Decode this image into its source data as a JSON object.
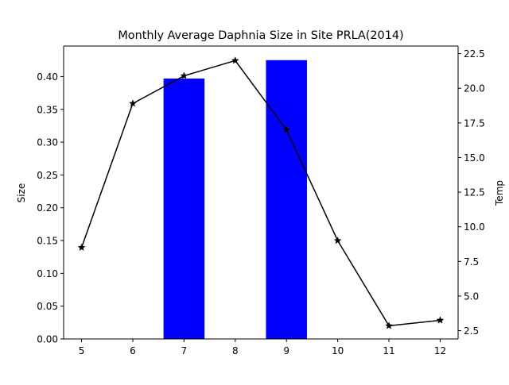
{
  "chart_data": {
    "type": "bar",
    "title": "Monthly Average Daphnia Size in Site PRLA(2014)",
    "xlabel": "",
    "ylabel": "Size",
    "y2label": "Temp",
    "categories": [
      "5",
      "6",
      "7",
      "8",
      "9",
      "10",
      "11",
      "12"
    ],
    "x": [
      5,
      6,
      7,
      8,
      9,
      10,
      11,
      12
    ],
    "xlim": [
      4.65,
      12.35
    ],
    "ylim": [
      0,
      0.4465
    ],
    "y2lim": [
      1.9,
      23.05
    ],
    "yticks": [
      "0.00",
      "0.05",
      "0.10",
      "0.15",
      "0.20",
      "0.25",
      "0.30",
      "0.35",
      "0.40"
    ],
    "y2ticks": [
      "2.5",
      "5.0",
      "7.5",
      "10.0",
      "12.5",
      "15.0",
      "17.5",
      "20.0",
      "22.5"
    ],
    "series": [
      {
        "kind": "bar",
        "axis": "left",
        "color": "#0000ff",
        "bar_width": 0.8,
        "x": [
          7,
          9
        ],
        "values": [
          0.397,
          0.425
        ]
      },
      {
        "kind": "line",
        "axis": "right",
        "color": "#000000",
        "marker": "star",
        "x": [
          5,
          6,
          7,
          8,
          9,
          10,
          11,
          12
        ],
        "values": [
          8.5,
          18.9,
          20.9,
          22.0,
          17.0,
          9.0,
          2.85,
          3.25
        ]
      }
    ],
    "grid": false,
    "legend": "none"
  }
}
